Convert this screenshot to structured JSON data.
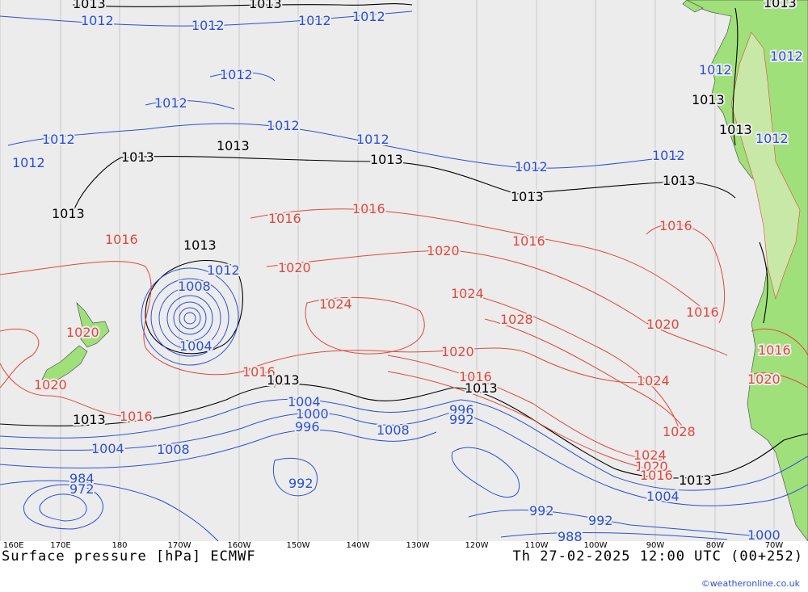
{
  "title": "Surface pressure [hPa] ECMWF",
  "valid_time": "Th 27-02-2025 12:00 UTC (00+252)",
  "credit": "©weatheronline.co.uk",
  "colors": {
    "ocean": "#ececec",
    "land": "#9fe07a",
    "isobar_low": "#2a4fd6",
    "isobar_high": "#e0473c",
    "isobar_ref": "#000000",
    "grid": "#b8b8b8"
  },
  "longitude_labels": [
    "160E",
    "170E",
    "180",
    "170W",
    "160W",
    "150W",
    "140W",
    "130W",
    "120W",
    "110W",
    "100W",
    "90W",
    "80W",
    "70W"
  ],
  "isobar_labels": [
    {
      "text": "1013",
      "color": "black"
    },
    {
      "text": "1012",
      "color": "blue"
    },
    {
      "text": "1012",
      "color": "blue"
    },
    {
      "text": "1013",
      "color": "black"
    },
    {
      "text": "1012",
      "color": "blue"
    },
    {
      "text": "1012",
      "color": "blue"
    },
    {
      "text": "1013",
      "color": "black"
    },
    {
      "text": "1012",
      "color": "blue"
    },
    {
      "text": "1012",
      "color": "blue"
    },
    {
      "text": "1012",
      "color": "blue"
    },
    {
      "text": "1012",
      "color": "blue"
    },
    {
      "text": "1012",
      "color": "blue"
    },
    {
      "text": "1013",
      "color": "black"
    },
    {
      "text": "1013",
      "color": "black"
    },
    {
      "text": "1013",
      "color": "black"
    },
    {
      "text": "1012",
      "color": "blue"
    },
    {
      "text": "1012",
      "color": "blue"
    },
    {
      "text": "1013",
      "color": "black"
    },
    {
      "text": "1013",
      "color": "black"
    },
    {
      "text": "1012",
      "color": "blue"
    },
    {
      "text": "1013",
      "color": "black"
    },
    {
      "text": "1013",
      "color": "black"
    },
    {
      "text": "1012",
      "color": "blue"
    },
    {
      "text": "1013",
      "color": "black"
    },
    {
      "text": "1012",
      "color": "blue"
    },
    {
      "text": "1012",
      "color": "blue"
    },
    {
      "text": "1016",
      "color": "red"
    },
    {
      "text": "1016",
      "color": "red"
    },
    {
      "text": "1016",
      "color": "red"
    },
    {
      "text": "1016",
      "color": "red"
    },
    {
      "text": "1013",
      "color": "black"
    },
    {
      "text": "1012",
      "color": "blue"
    },
    {
      "text": "1008",
      "color": "blue"
    },
    {
      "text": "1004",
      "color": "blue"
    },
    {
      "text": "1020",
      "color": "red"
    },
    {
      "text": "1020",
      "color": "red"
    },
    {
      "text": "1024",
      "color": "red"
    },
    {
      "text": "1024",
      "color": "red"
    },
    {
      "text": "1028",
      "color": "red"
    },
    {
      "text": "1016",
      "color": "red"
    },
    {
      "text": "1020",
      "color": "red"
    },
    {
      "text": "1020",
      "color": "red"
    },
    {
      "text": "1020",
      "color": "red"
    },
    {
      "text": "1020",
      "color": "red"
    },
    {
      "text": "1016",
      "color": "red"
    },
    {
      "text": "1016",
      "color": "red"
    },
    {
      "text": "1013",
      "color": "black"
    },
    {
      "text": "1013",
      "color": "black"
    },
    {
      "text": "1004",
      "color": "blue"
    },
    {
      "text": "1000",
      "color": "blue"
    },
    {
      "text": "996",
      "color": "blue"
    },
    {
      "text": "1008",
      "color": "blue"
    },
    {
      "text": "996",
      "color": "blue"
    },
    {
      "text": "992",
      "color": "blue"
    },
    {
      "text": "1024",
      "color": "red"
    },
    {
      "text": "1016",
      "color": "red"
    },
    {
      "text": "1013",
      "color": "black"
    },
    {
      "text": "1016",
      "color": "red"
    },
    {
      "text": "1004",
      "color": "blue"
    },
    {
      "text": "1008",
      "color": "blue"
    },
    {
      "text": "984",
      "color": "blue"
    },
    {
      "text": "972",
      "color": "blue"
    },
    {
      "text": "992",
      "color": "blue"
    },
    {
      "text": "1028",
      "color": "red"
    },
    {
      "text": "1024",
      "color": "red"
    },
    {
      "text": "1020",
      "color": "red"
    },
    {
      "text": "1016",
      "color": "red"
    },
    {
      "text": "1013",
      "color": "black"
    },
    {
      "text": "1004",
      "color": "blue"
    },
    {
      "text": "992",
      "color": "blue"
    },
    {
      "text": "992",
      "color": "blue"
    },
    {
      "text": "988",
      "color": "blue"
    },
    {
      "text": "1000",
      "color": "blue"
    },
    {
      "text": "1016",
      "color": "red"
    },
    {
      "text": "1020",
      "color": "red"
    }
  ]
}
